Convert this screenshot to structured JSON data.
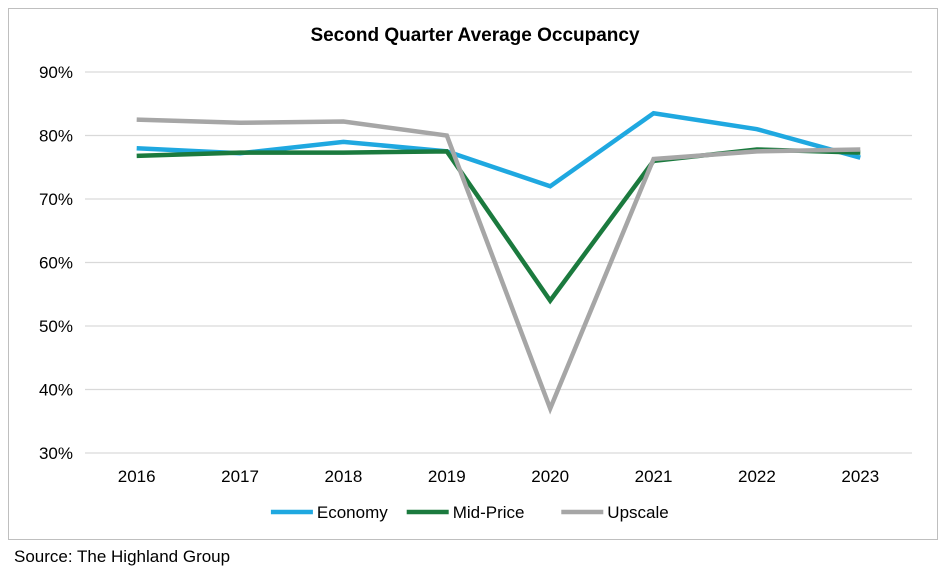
{
  "chart_data": {
    "type": "line",
    "title": "Second Quarter Average Occupancy",
    "categories": [
      "2016",
      "2017",
      "2018",
      "2019",
      "2020",
      "2021",
      "2022",
      "2023"
    ],
    "ylim": [
      30,
      90
    ],
    "yticks": [
      30,
      40,
      50,
      60,
      70,
      80,
      90
    ],
    "ytick_labels": [
      "30%",
      "40%",
      "50%",
      "60%",
      "70%",
      "80%",
      "90%"
    ],
    "grid": true,
    "legend_position": "bottom",
    "series": [
      {
        "name": "Economy",
        "color": "#1fa8e0",
        "values": [
          78.0,
          77.2,
          79.0,
          77.5,
          72.0,
          83.5,
          81.0,
          76.5
        ]
      },
      {
        "name": "Mid-Price",
        "color": "#1b7a3e",
        "values": [
          76.8,
          77.3,
          77.3,
          77.5,
          54.0,
          76.0,
          77.8,
          77.3
        ]
      },
      {
        "name": "Upscale",
        "color": "#a6a6a6",
        "values": [
          82.5,
          82.0,
          82.2,
          80.0,
          37.0,
          76.3,
          77.5,
          77.8
        ]
      }
    ]
  },
  "source": "Source: The Highland Group"
}
